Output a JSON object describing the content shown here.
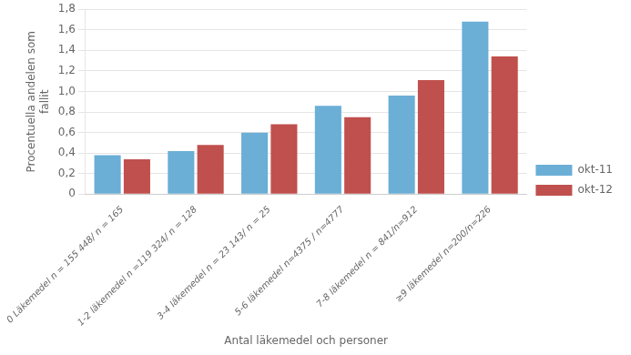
{
  "chart_data": {
    "type": "bar",
    "xlabel": "Antal läkemedel och personer",
    "ylabel": "Procentuella andelen som\nfallit",
    "categories": [
      "0 Läkemedel n = 155 448/ n = 165",
      "1-2 läkemedel n =119 324/ n = 128",
      "3-4 läkemedel n = 23 143/ n = 25",
      "5-6 läkemedel n=4375 / n=4777",
      "7-8 läkemedel n = 841/n=912",
      "≥9 läkemedel n=200/n=226"
    ],
    "series": [
      {
        "name": "okt-11",
        "color": "#6baed6",
        "values": [
          0.38,
          0.42,
          0.6,
          0.86,
          0.96,
          1.68
        ]
      },
      {
        "name": "okt-12",
        "color": "#c0504d",
        "values": [
          0.34,
          0.48,
          0.68,
          0.75,
          1.11,
          1.34
        ]
      }
    ],
    "ylim": [
      0,
      1.8
    ],
    "yticks": [
      0,
      {
        "value": 0.2,
        "label": "0,2"
      },
      {
        "value": 0.4,
        "label": "0,4"
      },
      {
        "value": 0.6,
        "label": "0,6"
      },
      {
        "value": 0.8,
        "label": "0,8"
      },
      {
        "value": 1.0,
        "label": "1,0"
      },
      {
        "value": 1.2,
        "label": "1,2"
      },
      {
        "value": 1.4,
        "label": "1,4"
      },
      {
        "value": 1.6,
        "label": "1,6"
      },
      {
        "value": 1.8,
        "label": "1,8"
      }
    ],
    "grid": true,
    "legend": "right"
  }
}
